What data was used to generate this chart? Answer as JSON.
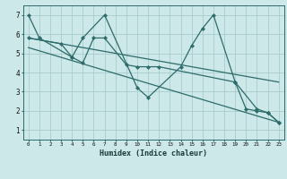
{
  "xlabel": "Humidex (Indice chaleur)",
  "bg_color": "#cce8e8",
  "grid_color": "#aacccc",
  "line_color": "#2e6b6b",
  "xlim": [
    -0.5,
    23.5
  ],
  "ylim": [
    0.5,
    7.5
  ],
  "xtick_vals": [
    0,
    1,
    2,
    3,
    4,
    5,
    6,
    7,
    8,
    9,
    10,
    11,
    12,
    13,
    14,
    15,
    16,
    17,
    18,
    19,
    20,
    21,
    22,
    23
  ],
  "ytick_vals": [
    1,
    2,
    3,
    4,
    5,
    6,
    7
  ],
  "series": [
    {
      "x": [
        0,
        1,
        4,
        5,
        7,
        10,
        11,
        14,
        15,
        16,
        17,
        19,
        20,
        21,
        22,
        23
      ],
      "y": [
        7,
        5.8,
        4.8,
        5.8,
        7.0,
        3.2,
        2.7,
        4.3,
        5.4,
        6.3,
        7.0,
        3.5,
        2.1,
        2.0,
        1.9,
        1.4
      ]
    },
    {
      "x": [
        0,
        3,
        4,
        5,
        6,
        7,
        9,
        10,
        11,
        12,
        19,
        21,
        22,
        23
      ],
      "y": [
        5.8,
        5.5,
        4.8,
        4.5,
        5.8,
        5.8,
        4.4,
        4.3,
        4.3,
        4.3,
        3.5,
        2.1,
        1.9,
        1.4
      ]
    },
    {
      "x": [
        0,
        23
      ],
      "y": [
        5.8,
        3.5
      ]
    },
    {
      "x": [
        0,
        23
      ],
      "y": [
        5.3,
        1.4
      ]
    }
  ]
}
